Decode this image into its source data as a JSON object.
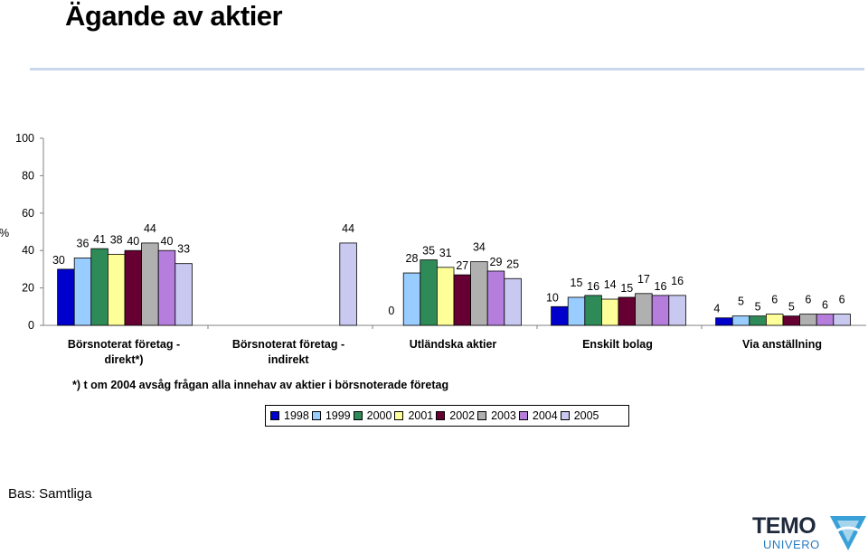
{
  "page": {
    "title": "Ägande av aktier",
    "footnote": "*) t om 2004 avsåg frågan alla innehav av aktier i börsnoterade företag",
    "base_note": "Bas: Samtliga",
    "logo": {
      "line1": "TEMO",
      "line2": "UNIVERO"
    }
  },
  "chart_data": {
    "type": "bar",
    "ylabel": "%",
    "ylim": [
      0,
      100
    ],
    "yticks": [
      0,
      20,
      40,
      60,
      80,
      100
    ],
    "grid": false,
    "legend_placement": "bottom",
    "categories": [
      [
        "Börsnoterat företag -",
        "direkt*)"
      ],
      [
        "Börsnoterat företag -",
        "indirekt"
      ],
      [
        "Utländska aktier"
      ],
      [
        "Enskilt bolag"
      ],
      [
        "Via anställning"
      ]
    ],
    "series": [
      {
        "name": "1998",
        "color": "#0000cc",
        "values": [
          30,
          null,
          null,
          10,
          4
        ]
      },
      {
        "name": "1999",
        "color": "#99ccff",
        "values": [
          36,
          null,
          28,
          15,
          5
        ]
      },
      {
        "name": "2000",
        "color": "#2e8b57",
        "values": [
          41,
          null,
          35,
          16,
          5
        ]
      },
      {
        "name": "2001",
        "color": "#ffff99",
        "values": [
          38,
          null,
          31,
          14,
          6
        ]
      },
      {
        "name": "2002",
        "color": "#660033",
        "values": [
          40,
          null,
          27,
          15,
          5
        ]
      },
      {
        "name": "2003",
        "color": "#b0b0b0",
        "values": [
          44,
          null,
          34,
          17,
          6
        ]
      },
      {
        "name": "2004",
        "color": "#b57edc",
        "values": [
          40,
          null,
          29,
          16,
          6
        ]
      },
      {
        "name": "2005",
        "color": "#c8c8f0",
        "values": [
          33,
          44,
          25,
          16,
          6
        ]
      }
    ],
    "extra_labels": [
      {
        "category": 2,
        "series": 0,
        "text": "0"
      }
    ]
  }
}
